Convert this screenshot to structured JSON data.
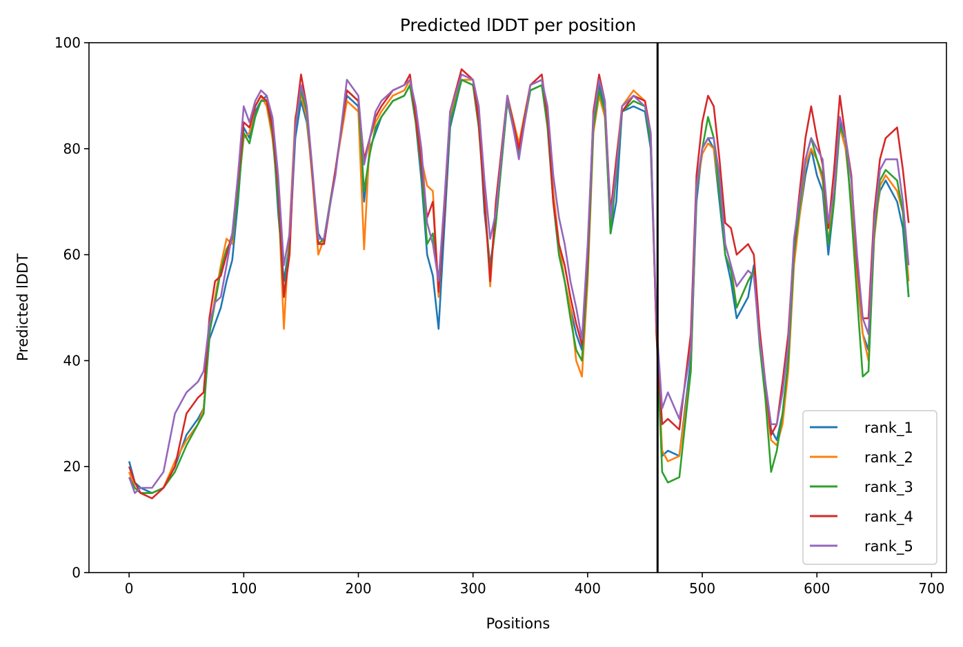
{
  "chart_data": {
    "type": "line",
    "title": "Predicted lDDT per position",
    "xlabel": "Positions",
    "ylabel": "Predicted lDDT",
    "xlim": [
      -35,
      713
    ],
    "ylim": [
      0,
      100
    ],
    "xticks": [
      0,
      100,
      200,
      300,
      400,
      500,
      600,
      700
    ],
    "yticks": [
      0,
      20,
      40,
      60,
      80,
      100
    ],
    "grid": false,
    "legend_position": "lower-right",
    "chain_break_x": 461,
    "series": [
      {
        "name": "rank_1",
        "color": "#1f77b4",
        "x": [
          0,
          5,
          10,
          20,
          30,
          40,
          50,
          60,
          65,
          70,
          75,
          80,
          85,
          90,
          95,
          100,
          105,
          110,
          115,
          120,
          125,
          130,
          135,
          140,
          145,
          150,
          155,
          160,
          165,
          170,
          180,
          190,
          200,
          205,
          210,
          215,
          220,
          230,
          240,
          245,
          250,
          255,
          260,
          265,
          270,
          275,
          280,
          290,
          300,
          305,
          310,
          315,
          320,
          330,
          340,
          350,
          360,
          365,
          370,
          375,
          380,
          385,
          390,
          395,
          400,
          405,
          410,
          415,
          420,
          425,
          430,
          440,
          450,
          455,
          460,
          465,
          470,
          480,
          490,
          495,
          500,
          505,
          510,
          515,
          520,
          525,
          530,
          540,
          545,
          550,
          555,
          560,
          565,
          570,
          575,
          580,
          590,
          595,
          600,
          605,
          610,
          615,
          620,
          625,
          630,
          635,
          640,
          645,
          650,
          655,
          660,
          670,
          675,
          680
        ],
        "y": [
          21,
          17,
          16,
          15,
          16,
          20,
          26,
          29,
          31,
          44,
          47,
          50,
          55,
          59,
          70,
          84,
          82,
          87,
          89,
          90,
          85,
          68,
          55,
          62,
          82,
          89,
          85,
          75,
          64,
          62,
          76,
          90,
          88,
          70,
          80,
          83,
          86,
          89,
          90,
          92,
          85,
          74,
          60,
          56,
          46,
          65,
          84,
          93,
          92,
          86,
          68,
          58,
          66,
          89,
          80,
          91,
          92,
          85,
          70,
          60,
          55,
          50,
          45,
          42,
          58,
          85,
          92,
          88,
          64,
          70,
          87,
          88,
          87,
          80,
          46,
          22,
          23,
          22,
          40,
          70,
          80,
          82,
          80,
          70,
          60,
          55,
          48,
          52,
          58,
          45,
          35,
          27,
          25,
          30,
          40,
          60,
          75,
          80,
          75,
          72,
          60,
          70,
          85,
          80,
          70,
          55,
          45,
          42,
          65,
          72,
          74,
          70,
          65,
          52
        ]
      },
      {
        "name": "rank_2",
        "color": "#ff7f0e",
        "x": [
          0,
          5,
          10,
          20,
          30,
          40,
          50,
          60,
          65,
          70,
          75,
          80,
          85,
          90,
          95,
          100,
          105,
          110,
          115,
          120,
          125,
          130,
          135,
          140,
          145,
          150,
          155,
          160,
          165,
          170,
          180,
          190,
          200,
          205,
          210,
          215,
          220,
          230,
          240,
          245,
          250,
          255,
          260,
          265,
          270,
          275,
          280,
          290,
          300,
          305,
          310,
          315,
          320,
          330,
          340,
          350,
          360,
          365,
          370,
          375,
          380,
          385,
          390,
          395,
          400,
          405,
          410,
          415,
          420,
          425,
          430,
          440,
          450,
          455,
          460,
          465,
          470,
          480,
          490,
          495,
          500,
          505,
          510,
          515,
          520,
          525,
          530,
          540,
          545,
          550,
          555,
          560,
          565,
          570,
          575,
          580,
          590,
          595,
          600,
          605,
          610,
          615,
          620,
          625,
          630,
          635,
          640,
          645,
          650,
          655,
          660,
          670,
          675,
          680
        ],
        "y": [
          19,
          16,
          15,
          15,
          16,
          21,
          25,
          28,
          31,
          45,
          52,
          58,
          63,
          62,
          72,
          82,
          83,
          88,
          90,
          88,
          82,
          72,
          46,
          65,
          86,
          90,
          86,
          74,
          60,
          63,
          76,
          89,
          87,
          61,
          82,
          85,
          87,
          90,
          91,
          93,
          86,
          78,
          73,
          72,
          52,
          70,
          86,
          93,
          93,
          88,
          72,
          54,
          70,
          90,
          81,
          92,
          93,
          86,
          72,
          62,
          55,
          50,
          40,
          37,
          55,
          83,
          90,
          86,
          65,
          78,
          88,
          91,
          89,
          82,
          45,
          23,
          21,
          22,
          38,
          72,
          79,
          81,
          80,
          72,
          62,
          58,
          50,
          55,
          57,
          44,
          34,
          25,
          24,
          28,
          38,
          58,
          77,
          80,
          78,
          74,
          62,
          72,
          84,
          80,
          70,
          56,
          45,
          40,
          63,
          73,
          75,
          72,
          68,
          55
        ]
      },
      {
        "name": "rank_3",
        "color": "#2ca02c",
        "x": [
          0,
          5,
          10,
          20,
          30,
          40,
          50,
          60,
          65,
          70,
          75,
          80,
          85,
          90,
          95,
          100,
          105,
          110,
          115,
          120,
          125,
          130,
          135,
          140,
          145,
          150,
          155,
          160,
          165,
          170,
          180,
          190,
          200,
          205,
          210,
          215,
          220,
          230,
          240,
          245,
          250,
          255,
          260,
          265,
          270,
          275,
          280,
          290,
          300,
          305,
          310,
          315,
          320,
          330,
          340,
          350,
          360,
          365,
          370,
          375,
          380,
          385,
          390,
          395,
          400,
          405,
          410,
          415,
          420,
          425,
          430,
          440,
          450,
          455,
          460,
          465,
          470,
          480,
          490,
          495,
          500,
          505,
          510,
          515,
          520,
          525,
          530,
          540,
          545,
          550,
          555,
          560,
          565,
          570,
          575,
          580,
          590,
          595,
          600,
          605,
          610,
          615,
          620,
          625,
          630,
          635,
          640,
          645,
          650,
          655,
          660,
          670,
          675,
          680
        ],
        "y": [
          18,
          16,
          15,
          15,
          16,
          19,
          24,
          28,
          30,
          45,
          51,
          57,
          61,
          63,
          71,
          83,
          81,
          86,
          89,
          89,
          83,
          70,
          52,
          62,
          84,
          91,
          87,
          75,
          62,
          63,
          76,
          91,
          89,
          72,
          79,
          84,
          86,
          89,
          90,
          92,
          85,
          76,
          62,
          64,
          55,
          68,
          85,
          93,
          92,
          84,
          70,
          57,
          66,
          89,
          79,
          91,
          92,
          84,
          70,
          60,
          55,
          48,
          42,
          40,
          57,
          84,
          91,
          87,
          64,
          75,
          87,
          89,
          88,
          81,
          46,
          19,
          17,
          18,
          38,
          72,
          80,
          86,
          82,
          72,
          60,
          57,
          50,
          55,
          57,
          43,
          33,
          19,
          23,
          30,
          40,
          60,
          78,
          82,
          78,
          75,
          62,
          70,
          84,
          82,
          68,
          52,
          37,
          38,
          64,
          74,
          76,
          74,
          68,
          52
        ]
      },
      {
        "name": "rank_4",
        "color": "#d62728",
        "x": [
          0,
          5,
          10,
          20,
          30,
          40,
          50,
          60,
          65,
          70,
          75,
          80,
          85,
          90,
          95,
          100,
          105,
          110,
          115,
          120,
          125,
          130,
          135,
          140,
          145,
          150,
          155,
          160,
          165,
          170,
          180,
          190,
          200,
          205,
          210,
          215,
          220,
          230,
          240,
          245,
          250,
          255,
          260,
          265,
          270,
          275,
          280,
          290,
          300,
          305,
          310,
          315,
          320,
          330,
          340,
          350,
          360,
          365,
          370,
          375,
          380,
          385,
          390,
          395,
          400,
          405,
          410,
          415,
          420,
          425,
          430,
          440,
          450,
          455,
          460,
          465,
          470,
          480,
          490,
          495,
          500,
          505,
          510,
          515,
          520,
          525,
          530,
          540,
          545,
          550,
          555,
          560,
          565,
          570,
          575,
          580,
          590,
          595,
          600,
          605,
          610,
          615,
          620,
          625,
          630,
          635,
          640,
          645,
          650,
          655,
          660,
          670,
          675,
          680
        ],
        "y": [
          20,
          17,
          15,
          14,
          16,
          20,
          30,
          33,
          34,
          48,
          55,
          56,
          60,
          64,
          74,
          85,
          84,
          88,
          90,
          89,
          84,
          73,
          52,
          60,
          85,
          94,
          88,
          75,
          62,
          62,
          76,
          91,
          89,
          78,
          82,
          86,
          88,
          91,
          92,
          94,
          86,
          77,
          67,
          70,
          53,
          68,
          87,
          95,
          93,
          85,
          70,
          55,
          70,
          90,
          80,
          92,
          94,
          86,
          70,
          62,
          58,
          52,
          47,
          43,
          60,
          87,
          94,
          89,
          68,
          78,
          87,
          90,
          89,
          83,
          45,
          28,
          29,
          27,
          45,
          75,
          85,
          90,
          88,
          78,
          66,
          65,
          60,
          62,
          60,
          46,
          36,
          26,
          28,
          36,
          45,
          62,
          82,
          88,
          82,
          77,
          65,
          76,
          90,
          82,
          75,
          58,
          48,
          48,
          68,
          78,
          82,
          84,
          76,
          66
        ]
      },
      {
        "name": "rank_5",
        "color": "#9467bd",
        "x": [
          0,
          5,
          10,
          20,
          30,
          40,
          50,
          60,
          65,
          70,
          75,
          80,
          85,
          90,
          95,
          100,
          105,
          110,
          115,
          120,
          125,
          130,
          135,
          140,
          145,
          150,
          155,
          160,
          165,
          170,
          180,
          190,
          200,
          205,
          210,
          215,
          220,
          230,
          240,
          245,
          250,
          255,
          260,
          265,
          270,
          275,
          280,
          290,
          300,
          305,
          310,
          315,
          320,
          330,
          340,
          350,
          360,
          365,
          370,
          375,
          380,
          385,
          390,
          395,
          400,
          405,
          410,
          415,
          420,
          425,
          430,
          440,
          450,
          455,
          460,
          465,
          470,
          480,
          490,
          495,
          500,
          505,
          510,
          515,
          520,
          525,
          530,
          540,
          545,
          550,
          555,
          560,
          565,
          570,
          575,
          580,
          590,
          595,
          600,
          605,
          610,
          615,
          620,
          625,
          630,
          635,
          640,
          645,
          650,
          655,
          660,
          670,
          675,
          680
        ],
        "y": [
          18,
          15,
          16,
          16,
          19,
          30,
          34,
          36,
          38,
          47,
          51,
          52,
          58,
          64,
          75,
          88,
          85,
          89,
          91,
          90,
          86,
          75,
          58,
          64,
          84,
          92,
          88,
          76,
          63,
          63,
          75,
          93,
          90,
          77,
          82,
          87,
          89,
          91,
          92,
          93,
          88,
          80,
          66,
          62,
          55,
          70,
          87,
          94,
          93,
          88,
          74,
          63,
          68,
          90,
          78,
          92,
          93,
          88,
          75,
          67,
          62,
          55,
          50,
          44,
          62,
          86,
          93,
          89,
          67,
          76,
          88,
          90,
          88,
          83,
          47,
          31,
          34,
          29,
          42,
          73,
          80,
          82,
          82,
          75,
          62,
          58,
          54,
          57,
          56,
          44,
          36,
          28,
          28,
          34,
          43,
          63,
          78,
          82,
          80,
          78,
          66,
          72,
          86,
          82,
          74,
          60,
          48,
          45,
          66,
          76,
          78,
          78,
          70,
          58
        ]
      }
    ]
  }
}
